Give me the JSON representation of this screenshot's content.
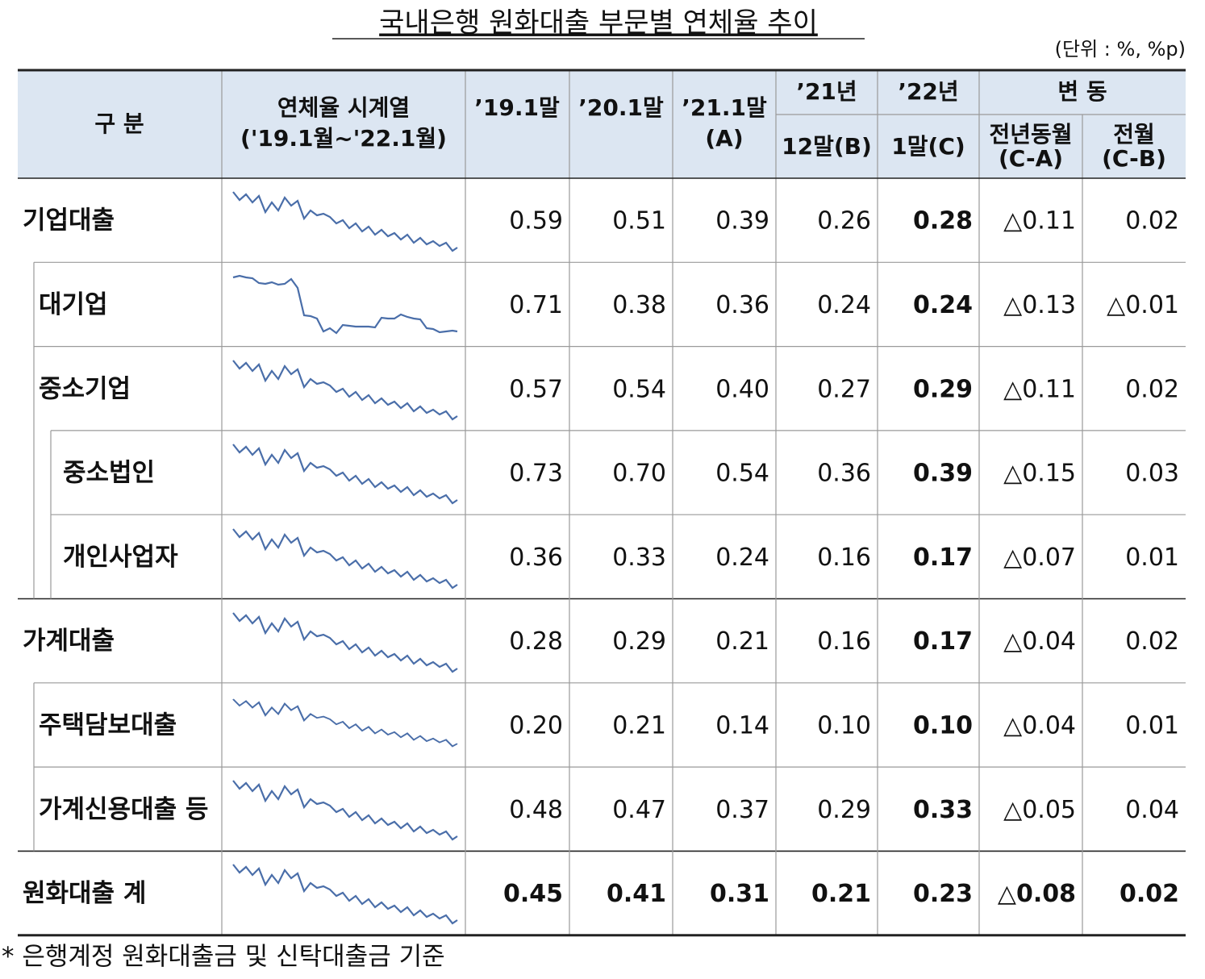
{
  "header": {
    "title": "국내은행 원화대출 부문별 연체율 추이",
    "unit": "(단위 : %, %p)"
  },
  "table": {
    "columns": {
      "category": "구 분",
      "series": [
        "연체율 시계열",
        "('19.1월~'22.1월)"
      ],
      "c1": "’19.1말",
      "c2": "’20.1말",
      "c3": [
        "’21.1말",
        "(A)"
      ],
      "c4": [
        "’21년",
        "12말(B)"
      ],
      "c5": [
        "’22년",
        "1말(C)"
      ],
      "change": "변 동",
      "c6": [
        "전년동월",
        "(C-A)"
      ],
      "c7": [
        "전월",
        "(C-B)"
      ]
    },
    "rows": [
      {
        "label": "기업대출",
        "values": [
          "0.59",
          "0.51",
          "0.39",
          "0.26",
          "0.28",
          "△0.11",
          "0.02"
        ]
      },
      {
        "label": "대기업",
        "values": [
          "0.71",
          "0.38",
          "0.36",
          "0.24",
          "0.24",
          "△0.13",
          "△0.01"
        ]
      },
      {
        "label": "중소기업",
        "values": [
          "0.57",
          "0.54",
          "0.40",
          "0.27",
          "0.29",
          "△0.11",
          "0.02"
        ]
      },
      {
        "label": "중소법인",
        "values": [
          "0.73",
          "0.70",
          "0.54",
          "0.36",
          "0.39",
          "△0.15",
          "0.03"
        ]
      },
      {
        "label": "개인사업자",
        "values": [
          "0.36",
          "0.33",
          "0.24",
          "0.16",
          "0.17",
          "△0.07",
          "0.01"
        ]
      },
      {
        "label": "가계대출",
        "values": [
          "0.28",
          "0.29",
          "0.21",
          "0.16",
          "0.17",
          "△0.04",
          "0.02"
        ]
      },
      {
        "label": "주택담보대출",
        "values": [
          "0.20",
          "0.21",
          "0.14",
          "0.10",
          "0.10",
          "△0.04",
          "0.01"
        ]
      },
      {
        "label": "가계신용대출 등",
        "values": [
          "0.48",
          "0.47",
          "0.37",
          "0.29",
          "0.33",
          "△0.05",
          "0.04"
        ]
      },
      {
        "label": "원화대출 계",
        "values": [
          "0.45",
          "0.41",
          "0.31",
          "0.21",
          "0.23",
          "△0.08",
          "0.02"
        ]
      }
    ]
  },
  "footnote": "* 은행계정 원화대출금 및 신탁대출금 기준"
}
